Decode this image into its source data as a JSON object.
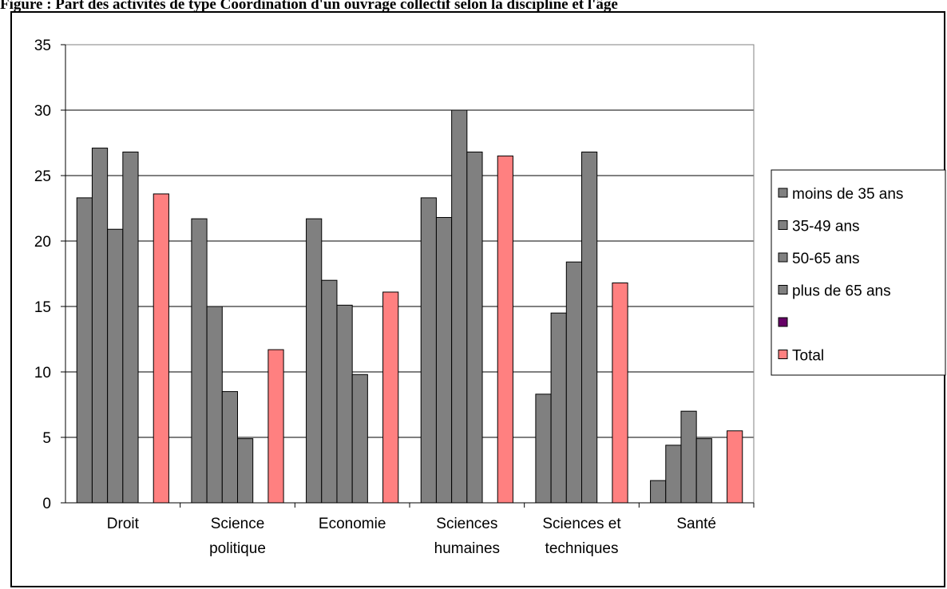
{
  "caption": {
    "text": "Figure : Part des activités de type Coordination d'un ouvrage collectif selon la discipline et l'âge"
  },
  "chart_data": {
    "type": "bar",
    "title": "",
    "xlabel": "",
    "ylabel": "",
    "ylim": [
      0,
      35
    ],
    "yticks": [
      0,
      5,
      10,
      15,
      20,
      25,
      30,
      35
    ],
    "grid": true,
    "legend_position": "right",
    "categories": [
      [
        "Droit"
      ],
      [
        "Science",
        "politique"
      ],
      [
        "Economie"
      ],
      [
        "Sciences",
        "humaines"
      ],
      [
        "Sciences et",
        "techniques"
      ],
      [
        "Santé"
      ]
    ],
    "series": [
      {
        "name": "moins de 35 ans",
        "color": "#808080",
        "values": [
          23.3,
          21.7,
          21.7,
          23.3,
          8.3,
          1.7
        ]
      },
      {
        "name": "35-49 ans",
        "color": "#808080",
        "values": [
          27.1,
          15.0,
          17.0,
          21.8,
          14.5,
          4.4
        ]
      },
      {
        "name": "50-65 ans",
        "color": "#808080",
        "values": [
          20.9,
          8.5,
          15.1,
          30.0,
          18.4,
          7.0
        ]
      },
      {
        "name": "plus de 65 ans",
        "color": "#808080",
        "values": [
          26.8,
          4.9,
          9.8,
          26.8,
          26.8,
          4.9
        ]
      },
      {
        "name": "",
        "color": "#660066",
        "values": [
          null,
          null,
          null,
          null,
          null,
          null
        ]
      },
      {
        "name": "Total",
        "color": "#ff8080",
        "values": [
          23.6,
          11.7,
          16.1,
          26.5,
          16.8,
          5.5
        ]
      }
    ]
  }
}
